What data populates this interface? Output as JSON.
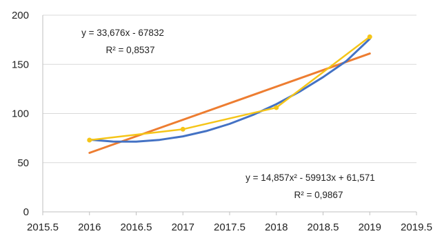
{
  "chart_data": {
    "type": "line",
    "title": "",
    "xlabel": "",
    "ylabel": "",
    "xlim": [
      2015.5,
      2019.5
    ],
    "ylim": [
      0,
      200
    ],
    "x_ticks": [
      2015.5,
      2016,
      2016.5,
      2017,
      2017.5,
      2018,
      2018.5,
      2019,
      2019.5
    ],
    "x_tick_labels": [
      "2015.5",
      "2016",
      "2016.5",
      "2017",
      "2017.5",
      "2018",
      "2018.5",
      "2019",
      "2019.5"
    ],
    "y_ticks": [
      0,
      50,
      100,
      150,
      200
    ],
    "y_tick_labels": [
      "0",
      "50",
      "100",
      "150",
      "200"
    ],
    "grid": "horizontal",
    "series": [
      {
        "kind": "data",
        "color": "#f5c518",
        "x": [
          2016,
          2017,
          2018,
          2019
        ],
        "y": [
          73,
          84,
          106,
          178
        ]
      },
      {
        "kind": "linear-trend",
        "color": "#ed7d31",
        "equation": "y = 33,676x - 67832",
        "r2": "R² = 0,8537",
        "x": [
          2016,
          2019
        ],
        "y": [
          60,
          161
        ]
      },
      {
        "kind": "polynomial-trend",
        "color": "#4472c4",
        "equation": "y = 14,857x² - 59913x + 61,571",
        "r2": "R² = 0,9867",
        "x": [
          2016,
          2016.25,
          2016.5,
          2016.75,
          2017,
          2017.25,
          2017.5,
          2017.75,
          2018,
          2018.25,
          2018.5,
          2018.75,
          2019
        ],
        "y": [
          73.4,
          71.5,
          71.4,
          73.2,
          76.8,
          82.2,
          89.5,
          98.6,
          109.5,
          122.3,
          137.0,
          153.4,
          175.9
        ]
      }
    ]
  }
}
